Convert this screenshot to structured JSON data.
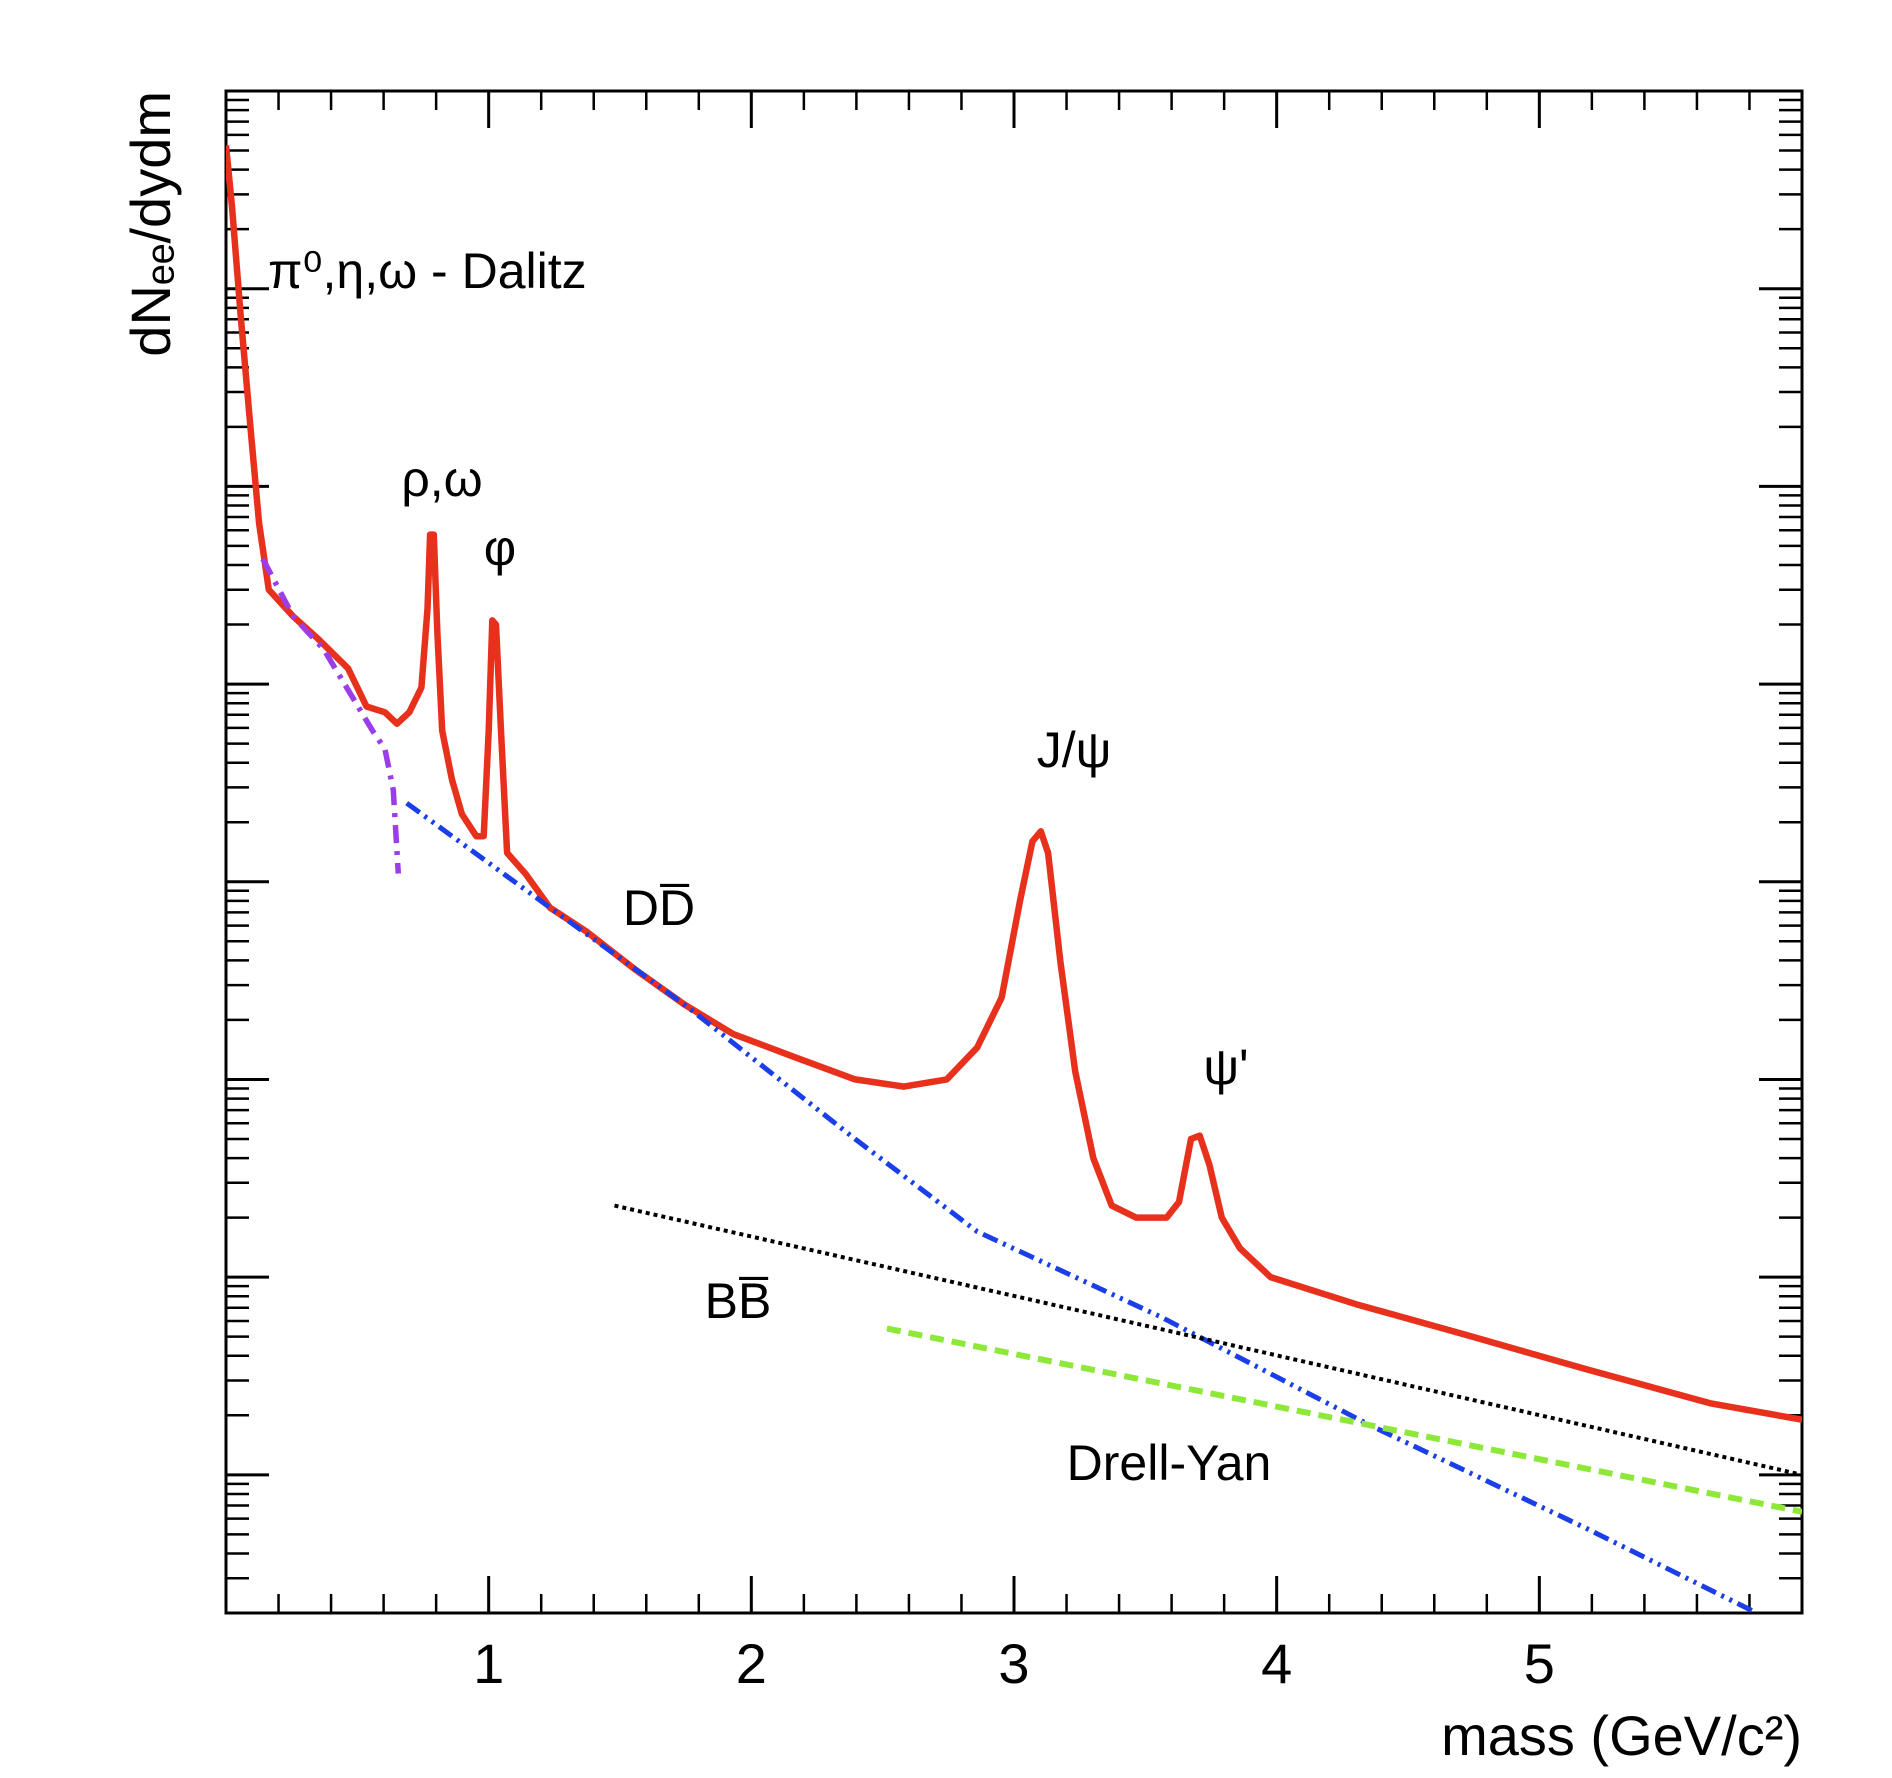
{
  "chart_data": {
    "type": "line",
    "xlabel": "mass (GeV/c²)",
    "ylabel": "dNₑₑ/dydm",
    "xlim": [
      0,
      6
    ],
    "xticks": [
      1,
      2,
      3,
      4,
      5
    ],
    "ylim": [
      2e-07,
      10
    ],
    "yticks": [
      1e-06,
      1e-05,
      0.0001,
      0.001,
      0.01,
      0.1,
      1
    ],
    "log_y": true,
    "series": [
      {
        "color": "#e8311c",
        "line_style": "solid",
        "x": [
          0,
          0.023,
          0.056,
          0.093,
          0.126,
          0.163,
          0.256,
          0.349,
          0.465,
          0.535,
          0.605,
          0.651,
          0.698,
          0.744,
          0.767,
          0.777,
          0.791,
          0.805,
          0.823,
          0.86,
          0.898,
          0.953,
          0.981,
          1.0,
          1.014,
          1.028,
          1.047,
          1.07,
          1.14,
          1.233,
          1.372,
          1.558,
          1.744,
          1.93,
          2.163,
          2.395,
          2.581,
          2.744,
          2.86,
          2.953,
          3.023,
          3.07,
          3.102,
          3.13,
          3.177,
          3.233,
          3.302,
          3.372,
          3.465,
          3.581,
          3.628,
          3.674,
          3.707,
          3.744,
          3.791,
          3.86,
          3.977,
          4.302,
          4.721,
          5.186,
          5.651,
          6.0
        ],
        "values": [
          5.3,
          2.6,
          0.73,
          0.2,
          0.065,
          0.03,
          0.022,
          0.017,
          0.012,
          0.0077,
          0.0072,
          0.0063,
          0.0072,
          0.0096,
          0.024,
          0.057,
          0.057,
          0.018,
          0.0058,
          0.0033,
          0.0022,
          0.0017,
          0.0017,
          0.0058,
          0.021,
          0.02,
          0.0058,
          0.0014,
          0.0011,
          0.00074,
          0.00056,
          0.00036,
          0.00024,
          0.00017,
          0.00013,
          0.0001,
          9.2e-05,
          0.0001,
          0.000145,
          0.00026,
          0.0008,
          0.0016,
          0.0018,
          0.0014,
          0.00039,
          0.00011,
          4e-05,
          2.3e-05,
          2e-05,
          2e-05,
          2.4e-05,
          5e-05,
          5.2e-05,
          3.7e-05,
          2e-05,
          1.4e-05,
          1e-05,
          7.3e-06,
          5.1e-06,
          3.4e-06,
          2.3e-06,
          1.9e-06
        ]
      },
      {
        "color": "#9b3de8",
        "line_style": "dash-dot",
        "x": [
          0.14,
          0.256,
          0.372,
          0.488,
          0.558,
          0.605,
          0.637,
          0.656
        ],
        "values": [
          0.043,
          0.022,
          0.015,
          0.0083,
          0.0058,
          0.0047,
          0.0029,
          0.0011
        ]
      },
      {
        "color": "#1a3ee8",
        "line_style": "dash-dot-dot",
        "x": [
          0.688,
          1.233,
          1.744,
          2.395,
          2.86,
          3.558,
          4.349,
          5.186,
          5.828
        ],
        "values": [
          0.0025,
          0.00074,
          0.00024,
          5e-05,
          1.7e-05,
          6.3e-06,
          1.8e-06,
          5.3e-07,
          2e-07
        ]
      },
      {
        "color": "#000000",
        "line_style": "dotted",
        "x": [
          1.479,
          3.744,
          6.0
        ],
        "values": [
          2.3e-05,
          4.8e-06,
          1e-06
        ]
      },
      {
        "color": "#8ee83a",
        "line_style": "dashed",
        "x": [
          2.516,
          6.0
        ],
        "values": [
          5.5e-06,
          6.5e-07
        ]
      }
    ],
    "annotations": [
      "π⁰,η,ω - Dalitz",
      "ρ,ω",
      "φ",
      "J/ψ",
      "DD̅",
      "ψ'",
      "BB̅",
      "Drell-Yan"
    ]
  }
}
